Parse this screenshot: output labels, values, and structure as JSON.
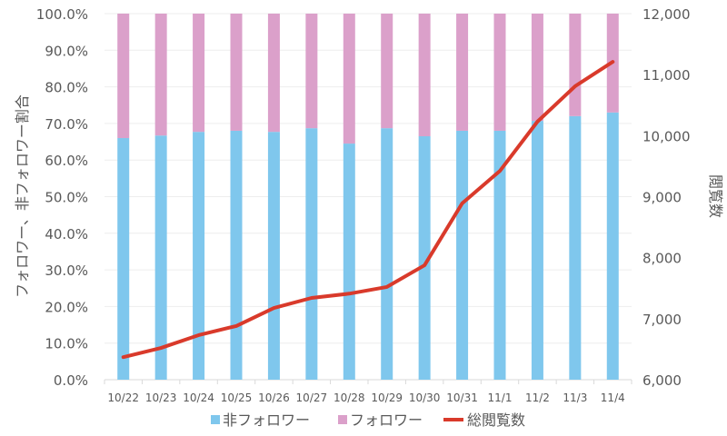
{
  "chart_data": {
    "type": "bar",
    "subtype": "stacked-percent-bar-with-line",
    "categories": [
      "10/22",
      "10/23",
      "10/24",
      "10/25",
      "10/26",
      "10/27",
      "10/28",
      "10/29",
      "10/30",
      "10/31",
      "11/1",
      "11/2",
      "11/3",
      "11/4"
    ],
    "series": [
      {
        "name": "非フォロワー",
        "axis": "left",
        "type": "bar",
        "color": "#7fc7ed",
        "values": [
          66.0,
          66.7,
          67.7,
          68.0,
          67.7,
          68.7,
          64.5,
          68.7,
          66.5,
          68.0,
          68.0,
          70.7,
          72.0,
          73.0
        ]
      },
      {
        "name": "フォロワー",
        "axis": "left",
        "type": "bar",
        "color": "#dba0ca",
        "values": [
          34.0,
          33.3,
          32.3,
          32.0,
          32.3,
          31.3,
          35.5,
          31.3,
          33.5,
          32.0,
          32.0,
          29.3,
          28.0,
          27.0
        ]
      },
      {
        "name": "総閲覧数",
        "axis": "right",
        "type": "line",
        "color": "#d93a2b",
        "values": [
          6370,
          6520,
          6730,
          6880,
          7175,
          7340,
          7410,
          7520,
          7875,
          8890,
          9420,
          10230,
          10810,
          11210
        ]
      }
    ],
    "ylabel": "フォロワー、非フォロワー割合",
    "y2label": "閲覧数",
    "ylim": [
      0,
      100
    ],
    "y2lim": [
      6000,
      12000
    ],
    "yticks": [
      "0.0%",
      "10.0%",
      "20.0%",
      "30.0%",
      "40.0%",
      "50.0%",
      "60.0%",
      "70.0%",
      "80.0%",
      "90.0%",
      "100.0%"
    ],
    "y2ticks": [
      "6,000",
      "7,000",
      "8,000",
      "9,000",
      "10,000",
      "11,000",
      "12,000"
    ],
    "grid": true,
    "legend": "bottom"
  }
}
